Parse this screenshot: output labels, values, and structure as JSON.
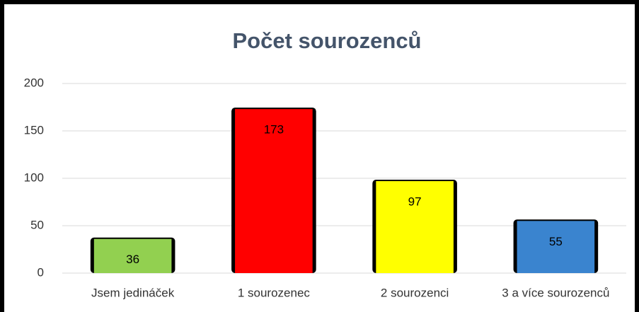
{
  "chart_data": {
    "type": "bar",
    "title": "Počet sourozenců",
    "categories": [
      "Jsem jedináček",
      "1 sourozenec",
      "2 sourozenci",
      "3 a více sourozenců"
    ],
    "values": [
      36,
      173,
      97,
      55
    ],
    "colors": [
      "#92d050",
      "#ff0000",
      "#ffff00",
      "#3a84cf"
    ],
    "ylim": [
      0,
      200
    ],
    "yticks": [
      0,
      50,
      100,
      150,
      200
    ],
    "grid": true
  }
}
